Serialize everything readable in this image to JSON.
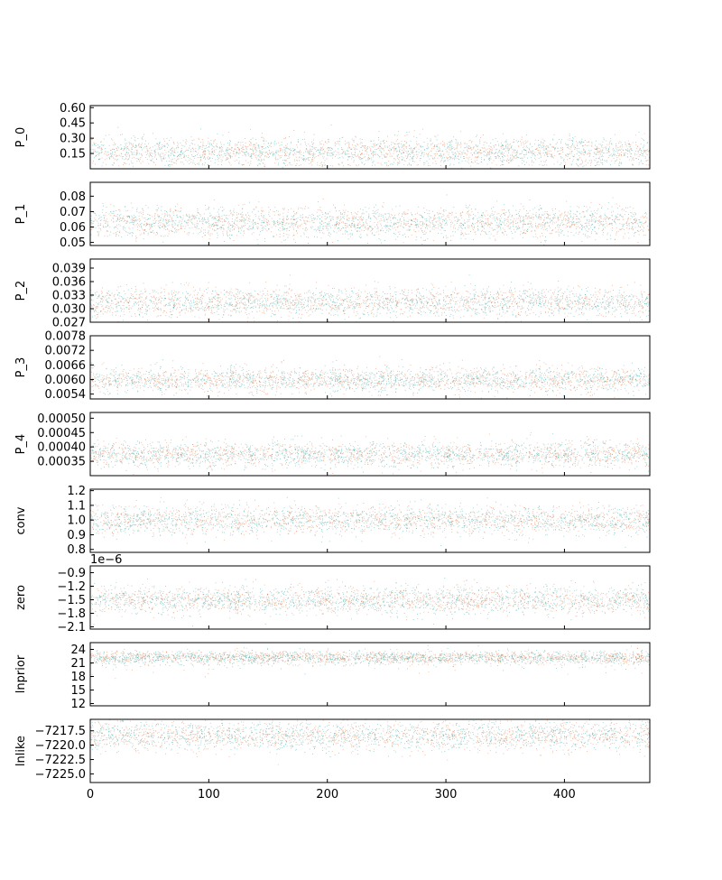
{
  "chart_data": {
    "type": "scatter",
    "description": "MCMC trace plot, 9 stacked panels sharing x axis (step index); faint scatter of walker samples in orange and teal",
    "x": {
      "label": "",
      "lim": [
        0,
        472
      ],
      "ticks": [
        0,
        100,
        200,
        300,
        400
      ],
      "tick_labels": [
        "0",
        "100",
        "200",
        "300",
        "400"
      ]
    },
    "series_colors": [
      "#e07b4f",
      "#3aa6a0"
    ],
    "panels": [
      {
        "ylabel": "P_0",
        "ylim": [
          0.0,
          0.62
        ],
        "yticks": [
          0.15,
          0.3,
          0.45,
          0.6
        ],
        "ytick_labels": [
          "0.15",
          "0.30",
          "0.45",
          "0.60"
        ],
        "mean": 0.17,
        "spread": 0.07,
        "offset_text": ""
      },
      {
        "ylabel": "P_1",
        "ylim": [
          0.048,
          0.089
        ],
        "yticks": [
          0.05,
          0.06,
          0.07,
          0.08
        ],
        "ytick_labels": [
          "0.05",
          "0.06",
          "0.07",
          "0.08"
        ],
        "mean": 0.063,
        "spread": 0.005,
        "offset_text": ""
      },
      {
        "ylabel": "P_2",
        "ylim": [
          0.027,
          0.041
        ],
        "yticks": [
          0.027,
          0.03,
          0.033,
          0.036,
          0.039
        ],
        "ytick_labels": [
          "0.027",
          "0.030",
          "0.033",
          "0.036",
          "0.039"
        ],
        "mean": 0.0315,
        "spread": 0.0016,
        "offset_text": ""
      },
      {
        "ylabel": "P_3",
        "ylim": [
          0.0052,
          0.0078
        ],
        "yticks": [
          0.0054,
          0.006,
          0.0066,
          0.0072,
          0.0078
        ],
        "ytick_labels": [
          "0.0054",
          "0.0060",
          "0.0066",
          "0.0072",
          "0.0078"
        ],
        "mean": 0.006,
        "spread": 0.00025,
        "offset_text": ""
      },
      {
        "ylabel": "P_4",
        "ylim": [
          0.0003,
          0.00052
        ],
        "yticks": [
          0.00035,
          0.0004,
          0.00045,
          0.0005
        ],
        "ytick_labels": [
          "0.00035",
          "0.00040",
          "0.00045",
          "0.00050"
        ],
        "mean": 0.000375,
        "spread": 2.2e-05,
        "offset_text": ""
      },
      {
        "ylabel": "conv",
        "ylim": [
          0.78,
          1.21
        ],
        "yticks": [
          0.8,
          0.9,
          1.0,
          1.1,
          1.2
        ],
        "ytick_labels": [
          "0.8",
          "0.9",
          "1.0",
          "1.1",
          "1.2"
        ],
        "mean": 1.0,
        "spread": 0.05,
        "offset_text": ""
      },
      {
        "ylabel": "zero",
        "ylim": [
          -2.15,
          -0.75
        ],
        "yticks": [
          -2.1,
          -1.8,
          -1.5,
          -1.2,
          -0.9
        ],
        "ytick_labels": [
          "−2.1",
          "−1.8",
          "−1.5",
          "−1.2",
          "−0.9"
        ],
        "mean": -1.5,
        "spread": 0.15,
        "offset_text": "1e−6"
      },
      {
        "ylabel": "lnprior",
        "ylim": [
          11.5,
          25.5
        ],
        "yticks": [
          12,
          15,
          18,
          21,
          24
        ],
        "ytick_labels": [
          "12",
          "15",
          "18",
          "21",
          "24"
        ],
        "mean": 22.3,
        "spread": 0.7,
        "offset_text": ""
      },
      {
        "ylabel": "lnlike",
        "ylim": [
          -7226.5,
          -7215.5
        ],
        "yticks": [
          -7225.0,
          -7222.5,
          -7220.0,
          -7217.5
        ],
        "ytick_labels": [
          "−7225.0",
          "−7222.5",
          "−7220.0",
          "−7217.5"
        ],
        "mean": -7218.3,
        "spread": 1.3,
        "offset_text": ""
      }
    ]
  }
}
